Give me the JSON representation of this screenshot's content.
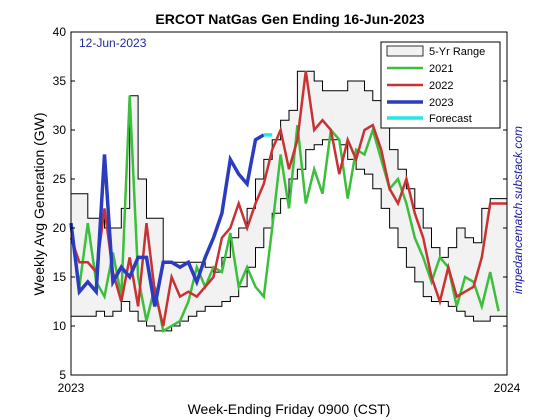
{
  "chart_data": {
    "type": "line",
    "title": "ERCOT NatGas Gen Ending 16-Jun-2023",
    "xlabel": "Week-Ending Friday 0900 (CST)",
    "ylabel": "Weekly Avg Generation (GW)",
    "ylim": [
      5,
      40
    ],
    "yticks": [
      5,
      10,
      15,
      20,
      25,
      30,
      35,
      40
    ],
    "xticks": [
      {
        "week": 0,
        "label": "2023"
      },
      {
        "week": 52,
        "label": "2024"
      }
    ],
    "xlim_weeks": [
      0,
      52
    ],
    "date_note": "12-Jun-2023",
    "watermark": "impedancematch.substack.com",
    "legend_position": "top-right",
    "grid": false,
    "colors": {
      "range_fill": "#f2f2f2",
      "range_edge": "#000000",
      "2021": "#3cbf3c",
      "2022": "#c83232",
      "2023": "#2c3cc0",
      "forecast": "#26e6e6"
    },
    "range": {
      "name": "5-Yr Range",
      "weeks": [
        0,
        1,
        2,
        3,
        4,
        5,
        6,
        7,
        8,
        9,
        10,
        11,
        12,
        13,
        14,
        15,
        16,
        17,
        18,
        19,
        20,
        21,
        22,
        23,
        24,
        25,
        26,
        27,
        28,
        29,
        30,
        31,
        32,
        33,
        34,
        35,
        36,
        37,
        38,
        39,
        40,
        41,
        42,
        43,
        44,
        45,
        46,
        47,
        48,
        49,
        50,
        51,
        52
      ],
      "low": [
        11,
        11,
        11,
        11.5,
        11,
        11.5,
        12.5,
        11.5,
        10.5,
        10,
        9.5,
        9.5,
        10,
        10.5,
        11,
        11.5,
        12,
        12,
        12.5,
        13,
        14,
        16,
        18,
        20,
        21.5,
        23,
        25,
        26,
        28,
        28.5,
        29,
        29,
        28.5,
        27,
        26,
        25.5,
        24,
        22,
        20,
        18,
        16,
        14.5,
        13,
        12.5,
        12.5,
        12,
        11.5,
        11,
        10.5,
        10.5,
        11,
        11,
        11
      ],
      "high": [
        23.5,
        23.5,
        21,
        21,
        20,
        20,
        22,
        33.5,
        25,
        21,
        21,
        16.5,
        16.5,
        16.5,
        16.5,
        16.5,
        16,
        15.5,
        17,
        19,
        20,
        22,
        25,
        27,
        29,
        31,
        32,
        36,
        36,
        35,
        34,
        34,
        34,
        35,
        35,
        34,
        33,
        31,
        28,
        26,
        24,
        22,
        20,
        18,
        17,
        18,
        20,
        19,
        18.5,
        22,
        23,
        23,
        23
      ]
    },
    "series": [
      {
        "name": "2021",
        "x": [
          0,
          1,
          2,
          3,
          4,
          5,
          6,
          7,
          8,
          9,
          10,
          11,
          12,
          13,
          14,
          15,
          16,
          17,
          18,
          19,
          20,
          21,
          22,
          23,
          24,
          25,
          26,
          27,
          28,
          29,
          30,
          31,
          32,
          33,
          34,
          35,
          36,
          37,
          38,
          39,
          40,
          41,
          42,
          43,
          44,
          45,
          46,
          47,
          48,
          49,
          50,
          51
        ],
        "y": [
          20.5,
          14,
          20.5,
          14.5,
          13,
          17.5,
          13,
          33.5,
          15,
          10.5,
          14,
          9.5,
          10,
          10.5,
          12.5,
          16,
          14,
          16,
          15.5,
          19.5,
          14,
          16,
          14,
          13,
          20,
          27.5,
          22,
          30.5,
          22.5,
          26,
          23.5,
          30,
          29,
          23,
          28,
          27.5,
          30,
          27,
          24,
          25,
          22.5,
          19,
          17,
          14.5,
          17,
          16,
          12,
          15,
          14.5,
          12,
          15.5,
          11.5
        ]
      },
      {
        "name": "2022",
        "x": [
          0,
          1,
          2,
          3,
          4,
          5,
          6,
          7,
          8,
          9,
          10,
          11,
          12,
          13,
          14,
          15,
          16,
          17,
          18,
          19,
          20,
          21,
          22,
          23,
          24,
          25,
          26,
          27,
          28,
          29,
          30,
          31,
          32,
          33,
          34,
          35,
          36,
          37,
          38,
          39,
          40,
          41,
          42,
          43,
          44,
          45,
          46,
          47,
          48,
          49,
          50,
          51,
          52
        ],
        "y": [
          19,
          16.5,
          16.5,
          15.5,
          22,
          15.5,
          12.5,
          17,
          12,
          20.5,
          13.5,
          10,
          15,
          13,
          13.5,
          13,
          14,
          15,
          19,
          20,
          22.5,
          20,
          22.5,
          24.5,
          28,
          30,
          26,
          29,
          36,
          30,
          31,
          30,
          25.5,
          29,
          27,
          30,
          30.5,
          28,
          24,
          22.5,
          25,
          21.5,
          19,
          15,
          12.5,
          16,
          13,
          13.5,
          14,
          17,
          22.5,
          22.5,
          22.5
        ]
      },
      {
        "name": "2023",
        "x": [
          0,
          1,
          2,
          3,
          4,
          5,
          6,
          7,
          8,
          9,
          10,
          11,
          12,
          13,
          14,
          15,
          16,
          17,
          18,
          19,
          20,
          21,
          22,
          23
        ],
        "y": [
          20.5,
          13.5,
          14.5,
          13.5,
          27.5,
          14.5,
          16,
          15,
          17,
          17,
          12,
          16.5,
          16.5,
          16,
          16.5,
          14.5,
          17,
          19,
          21.5,
          27,
          25.5,
          24.5,
          29,
          29.5
        ]
      },
      {
        "name": "Forecast",
        "x": [
          23,
          24
        ],
        "y": [
          29.5,
          29.5
        ]
      }
    ]
  }
}
